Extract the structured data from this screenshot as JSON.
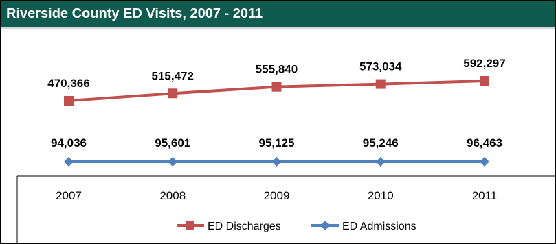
{
  "title": "Riverside County ED Visits, 2007 - 2011",
  "chart_data": {
    "type": "line",
    "title": "Riverside County ED Visits, 2007 - 2011",
    "categories": [
      "2007",
      "2008",
      "2009",
      "2010",
      "2011"
    ],
    "series": [
      {
        "name": "ED Discharges",
        "values": [
          470366,
          515472,
          555840,
          573034,
          592297
        ],
        "labels": [
          "470,366",
          "515,472",
          "555,840",
          "573,034",
          "592,297"
        ],
        "color": "#c0504d",
        "marker": "square"
      },
      {
        "name": "ED Admissions",
        "values": [
          94036,
          95601,
          95125,
          95246,
          96463
        ],
        "labels": [
          "94,036",
          "95,601",
          "95,125",
          "95,246",
          "96,463"
        ],
        "color": "#4f81bd",
        "marker": "diamond"
      }
    ],
    "xlabel": "",
    "ylabel": "",
    "grid": false,
    "legend": "bottom"
  },
  "colors": {
    "title_bar": "#0f5b4f",
    "title_text": "#ffffff"
  }
}
